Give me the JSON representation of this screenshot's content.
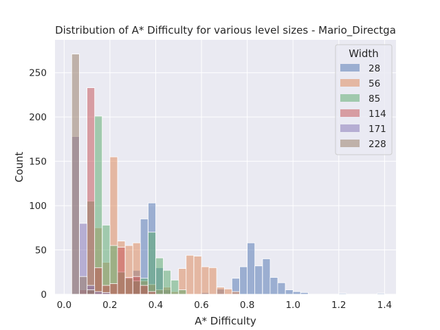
{
  "chart_data": {
    "type": "histogram",
    "title": "Distribution of A* Difficulty for various level sizes - Mario_Directga",
    "xlabel": "A* Difficulty",
    "ylabel": "Count",
    "xlim": [
      -0.04,
      1.45
    ],
    "ylim": [
      0,
      287
    ],
    "xticks": [
      "0.0",
      "0.2",
      "0.4",
      "0.6",
      "0.8",
      "1.0",
      "1.2",
      "1.4"
    ],
    "yticks": [
      "0",
      "50",
      "100",
      "150",
      "200",
      "250"
    ],
    "grid": true,
    "legend_title": "Width",
    "legend_position": "top-right",
    "bin_width": 0.0333,
    "series": [
      {
        "name": "28",
        "color": "#4c72b0",
        "bins": [
          {
            "x0": 0.3,
            "count": 27
          },
          {
            "x0": 0.333,
            "count": 85
          },
          {
            "x0": 0.367,
            "count": 103
          },
          {
            "x0": 0.4,
            "count": 30
          },
          {
            "x0": 0.433,
            "count": 5
          },
          {
            "x0": 0.6,
            "count": 2
          },
          {
            "x0": 0.667,
            "count": 6
          },
          {
            "x0": 0.733,
            "count": 18
          },
          {
            "x0": 0.767,
            "count": 31
          },
          {
            "x0": 0.8,
            "count": 58
          },
          {
            "x0": 0.833,
            "count": 32
          },
          {
            "x0": 0.867,
            "count": 40
          },
          {
            "x0": 0.9,
            "count": 19
          },
          {
            "x0": 0.933,
            "count": 13
          },
          {
            "x0": 0.967,
            "count": 5
          },
          {
            "x0": 1.0,
            "count": 3
          },
          {
            "x0": 1.033,
            "count": 2
          },
          {
            "x0": 1.2,
            "count": 1
          },
          {
            "x0": 1.367,
            "count": 1
          }
        ]
      },
      {
        "name": "56",
        "color": "#dd8452",
        "bins": [
          {
            "x0": 0.1,
            "count": 3
          },
          {
            "x0": 0.133,
            "count": 75
          },
          {
            "x0": 0.167,
            "count": 36
          },
          {
            "x0": 0.2,
            "count": 155
          },
          {
            "x0": 0.233,
            "count": 60
          },
          {
            "x0": 0.267,
            "count": 55
          },
          {
            "x0": 0.3,
            "count": 58
          },
          {
            "x0": 0.333,
            "count": 15
          },
          {
            "x0": 0.367,
            "count": 11
          },
          {
            "x0": 0.4,
            "count": 5
          },
          {
            "x0": 0.433,
            "count": 8
          },
          {
            "x0": 0.467,
            "count": 3
          },
          {
            "x0": 0.5,
            "count": 29
          },
          {
            "x0": 0.533,
            "count": 44
          },
          {
            "x0": 0.567,
            "count": 43
          },
          {
            "x0": 0.6,
            "count": 31
          },
          {
            "x0": 0.633,
            "count": 30
          },
          {
            "x0": 0.667,
            "count": 8
          },
          {
            "x0": 0.7,
            "count": 6
          },
          {
            "x0": 0.733,
            "count": 3
          }
        ]
      },
      {
        "name": "85",
        "color": "#55a868",
        "bins": [
          {
            "x0": 0.1,
            "count": 105
          },
          {
            "x0": 0.133,
            "count": 201
          },
          {
            "x0": 0.167,
            "count": 78
          },
          {
            "x0": 0.2,
            "count": 55
          },
          {
            "x0": 0.233,
            "count": 25
          },
          {
            "x0": 0.267,
            "count": 18
          },
          {
            "x0": 0.3,
            "count": 15
          },
          {
            "x0": 0.333,
            "count": 18
          },
          {
            "x0": 0.367,
            "count": 70
          },
          {
            "x0": 0.4,
            "count": 41
          },
          {
            "x0": 0.433,
            "count": 27
          },
          {
            "x0": 0.467,
            "count": 16
          },
          {
            "x0": 0.5,
            "count": 5
          }
        ]
      },
      {
        "name": "114",
        "color": "#c44e52",
        "bins": [
          {
            "x0": 0.067,
            "count": 5
          },
          {
            "x0": 0.1,
            "count": 233
          },
          {
            "x0": 0.133,
            "count": 30
          },
          {
            "x0": 0.167,
            "count": 10
          },
          {
            "x0": 0.2,
            "count": 12
          },
          {
            "x0": 0.233,
            "count": 53
          },
          {
            "x0": 0.267,
            "count": 19
          },
          {
            "x0": 0.3,
            "count": 20
          },
          {
            "x0": 0.333,
            "count": 10
          },
          {
            "x0": 0.367,
            "count": 3
          }
        ]
      },
      {
        "name": "171",
        "color": "#8172b3",
        "bins": [
          {
            "x0": 0.033,
            "count": 178
          },
          {
            "x0": 0.067,
            "count": 80
          },
          {
            "x0": 0.1,
            "count": 10
          },
          {
            "x0": 0.133,
            "count": 3
          },
          {
            "x0": 0.167,
            "count": 2
          }
        ]
      },
      {
        "name": "228",
        "color": "#937860",
        "bins": [
          {
            "x0": 0.033,
            "count": 271
          },
          {
            "x0": 0.067,
            "count": 20
          },
          {
            "x0": 0.1,
            "count": 5
          }
        ]
      }
    ]
  }
}
